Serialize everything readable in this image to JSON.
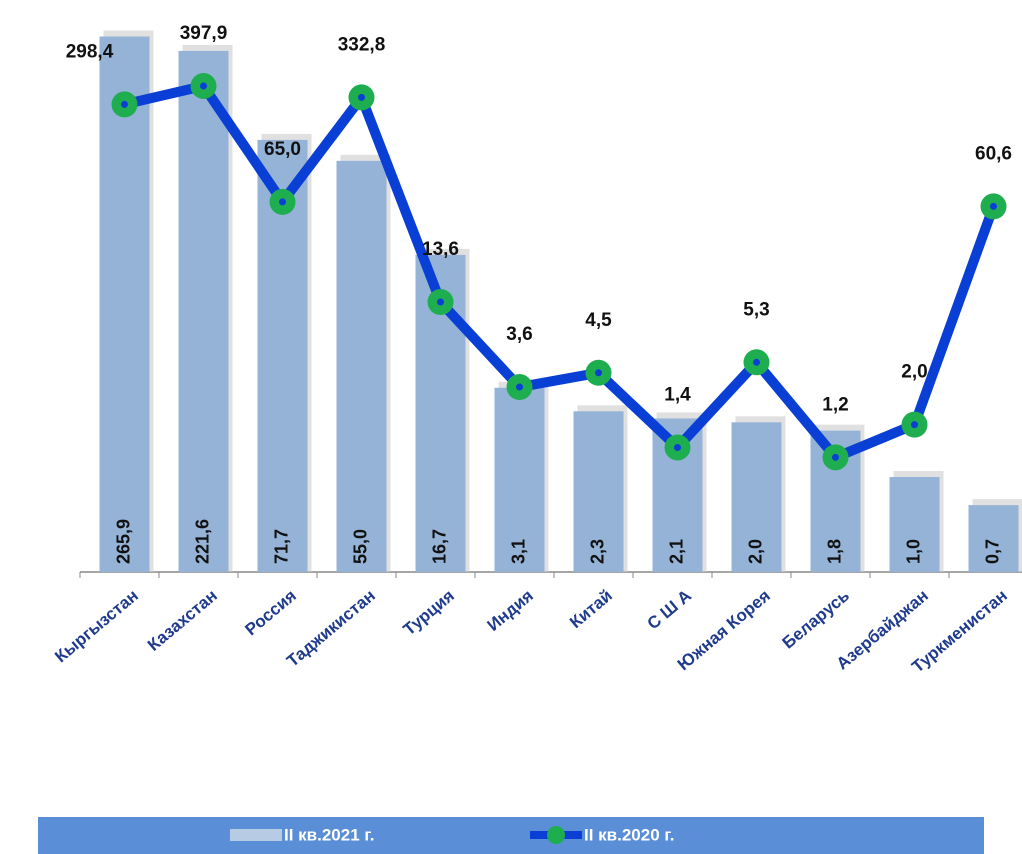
{
  "chart_data": {
    "type": "bar-line",
    "categories": [
      "Кыргызстан",
      "Казахстан",
      "Россия",
      "Таджикистан",
      "Турция",
      "Индия",
      "Китай",
      "С Ш А",
      "Южная Корея",
      "Беларусь",
      "Азербайджан",
      "Туркменистан"
    ],
    "series": [
      {
        "name": "II кв.2021 г.",
        "type": "bar",
        "color": "#95b3d7",
        "values": [
          265.9,
          221.6,
          71.7,
          55.0,
          16.7,
          3.1,
          2.3,
          2.1,
          2.0,
          1.8,
          1.0,
          0.7
        ],
        "value_labels": [
          "265,9",
          "221,6",
          "71,7",
          "55,0",
          "16,7",
          "3,1",
          "2,3",
          "2,1",
          "2,0",
          "1,8",
          "1,0",
          "0,7"
        ]
      },
      {
        "name": "II кв.2020 г.",
        "type": "line",
        "axis": "y2",
        "color": "#0a3fd6",
        "marker_color": "#1fae4f",
        "values": [
          298.4,
          397.9,
          65.0,
          332.8,
          13.6,
          3.6,
          4.5,
          1.4,
          5.3,
          1.2,
          2.0,
          60.6
        ],
        "value_labels": [
          "298,4",
          "397,9",
          "65,0",
          "332,8",
          "13,6",
          "3,6",
          "4,5",
          "1,4",
          "5,3",
          "1,2",
          "2,0",
          "60,6"
        ]
      }
    ],
    "ylim": [
      0.3,
      300
    ],
    "y2lim": [
      0.2,
      1000
    ],
    "log": true
  }
}
